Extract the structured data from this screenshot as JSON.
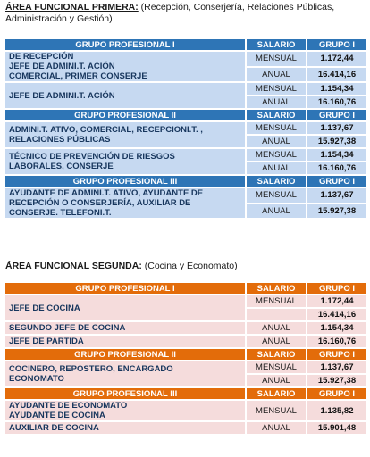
{
  "area1": {
    "heading": "ÁREA FUNCIONAL PRIMERA:",
    "description": "(Recepción, Conserjería, Relaciones Públicas, Administración y Gestión)",
    "groups": [
      {
        "header": [
          "GRUPO PROFESIONAL I",
          "SALARIO",
          "GRUPO I"
        ],
        "items": [
          {
            "name": [
              "DE RECEPCIÓN",
              "JEFE DE ADMINI.T. ACIÓN",
              "COMERCIAL, PRIMER CONSERJE"
            ],
            "salaries": [
              {
                "period": "MENSUAL",
                "amount": "1.172,44"
              },
              {
                "period": "ANUAL",
                "amount": "16.414,16"
              }
            ]
          },
          {
            "name": [
              "JEFE DE ADMINI.T. ACIÓN"
            ],
            "salaries": [
              {
                "period": "MENSUAL",
                "amount": "1.154,34"
              },
              {
                "period": "ANUAL",
                "amount": "16.160,76"
              }
            ]
          }
        ]
      },
      {
        "header": [
          "GRUPO PROFESIONAL II",
          "SALARIO",
          "GRUPO I"
        ],
        "items": [
          {
            "name": [
              "ADMINI.T. ATIVO, COMERCIAL, RECEPCIONI.T. ,",
              "RELACIONES PÚBLICAS"
            ],
            "salaries": [
              {
                "period": "MENSUAL",
                "amount": "1.137,67"
              },
              {
                "period": "ANUAL",
                "amount": "15.927,38"
              }
            ]
          },
          {
            "name": [
              "TÉCNICO DE PREVENCIÓN DE RIESGOS",
              "LABORALES, CONSERJE"
            ],
            "salaries": [
              {
                "period": "MENSUAL",
                "amount": "1.154,34"
              },
              {
                "period": "ANUAL",
                "amount": "16.160,76"
              }
            ]
          }
        ]
      },
      {
        "header": [
          "GRUPO PROFESIONAL III",
          "SALARIO",
          "GRUPO I"
        ],
        "items": [
          {
            "name": [
              "AYUDANTE DE ADMINI.T. ATIVO, AYUDANTE DE",
              "RECEPCIÓN O CONSERJERÍA, AUXILIAR DE",
              "CONSERJE. TELEFONI.T."
            ],
            "salaries": [
              {
                "period": "MENSUAL",
                "amount": "1.137,67"
              },
              {
                "period": "ANUAL",
                "amount": "15.927,38"
              }
            ]
          }
        ]
      }
    ]
  },
  "area2": {
    "heading": "ÁREA FUNCIONAL SEGUNDA:",
    "description": "(Cocina y Economato)",
    "groups": [
      {
        "header": [
          "GRUPO PROFESIONAL I",
          "SALARIO",
          "GRUPO I"
        ],
        "items": [
          {
            "name": [
              "JEFE DE COCINA"
            ],
            "salaries": [
              {
                "period": "MENSUAL",
                "amount": "1.172,44"
              },
              {
                "amount": "16.414,16"
              }
            ]
          },
          {
            "name": [
              "SEGUNDO JEFE DE COCINA"
            ],
            "salaries": [
              {
                "period": "ANUAL",
                "amount": "1.154,34"
              }
            ]
          },
          {
            "name": [
              "JEFE DE PARTIDA"
            ],
            "salaries": [
              {
                "period": "ANUAL",
                "amount": "16.160,76"
              }
            ]
          }
        ]
      },
      {
        "header": [
          "GRUPO PROFESIONAL II",
          "SALARIO",
          "GRUPO I"
        ],
        "items": [
          {
            "name": [
              "COCINERO, REPOSTERO, ENCARGADO",
              "ECONOMATO"
            ],
            "salaries": [
              {
                "period": "MENSUAL",
                "amount": "1.137,67"
              },
              {
                "period": "ANUAL",
                "amount": "15.927,38"
              }
            ]
          }
        ]
      },
      {
        "header": [
          "GRUPO PROFESIONAL III",
          "SALARIO",
          "GRUPO I"
        ],
        "items": [
          {
            "name": [
              "AYUDANTE DE ECONOMATO",
              "AYUDANTE DE COCINA"
            ],
            "salaries": [
              {
                "period": "MENSUAL",
                "amount": "1.135,82"
              }
            ]
          },
          {
            "name": [
              "AUXILIAR DE COCINA"
            ],
            "salaries": [
              {
                "period": "ANUAL",
                "amount": "15.901,48"
              }
            ]
          }
        ]
      }
    ]
  }
}
